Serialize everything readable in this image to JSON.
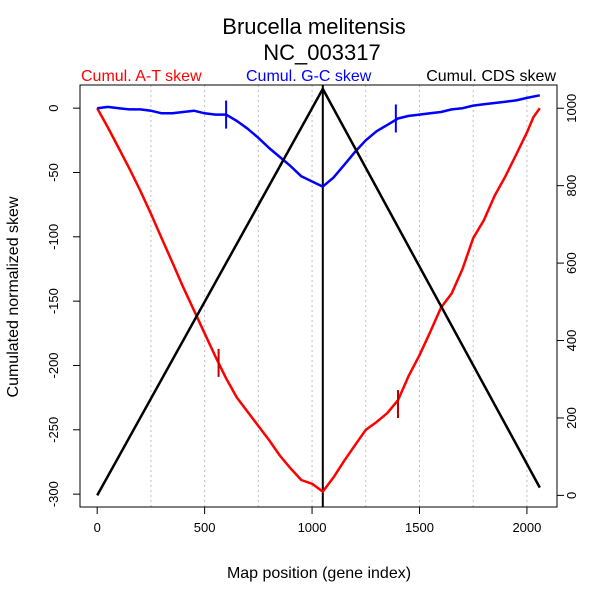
{
  "chart_data": {
    "type": "line",
    "title": "Brucella melitensis",
    "subtitle": "NC_003317",
    "xlabel": "Map position (gene index)",
    "ylabel": "Cumulated normalized skew",
    "xlim": [
      -80,
      2140
    ],
    "ylim": [
      -310,
      18
    ],
    "y2lim": [
      -30,
      1060
    ],
    "x_ticks": [
      0,
      500,
      1000,
      1500,
      2000
    ],
    "y_ticks": [
      0,
      -50,
      -100,
      -150,
      -200,
      -250,
      -300
    ],
    "y2_ticks": [
      0,
      200,
      400,
      600,
      800,
      1000
    ],
    "vertical_gridlines": [
      250,
      500,
      750,
      1000,
      1250,
      1500,
      1750,
      2000
    ],
    "grid_color": "#bebebe",
    "center_line_x": 1050,
    "series": [
      {
        "name": "Cumul. A-T skew",
        "color": "#ff0000",
        "axis": "left",
        "x": [
          0,
          50,
          100,
          150,
          200,
          250,
          300,
          350,
          400,
          450,
          500,
          550,
          600,
          650,
          700,
          750,
          800,
          850,
          900,
          950,
          1000,
          1050,
          1100,
          1150,
          1200,
          1250,
          1300,
          1350,
          1400,
          1450,
          1500,
          1550,
          1600,
          1650,
          1700,
          1750,
          1800,
          1850,
          1900,
          1950,
          2000,
          2030,
          2060
        ],
        "values": [
          0,
          -15,
          -31,
          -47,
          -64,
          -82,
          -101,
          -120,
          -139,
          -157,
          -175,
          -193,
          -210,
          -225,
          -236,
          -247,
          -258,
          -270,
          -280,
          -289,
          -292,
          -298,
          -287,
          -274,
          -262,
          -250,
          -244,
          -237,
          -227,
          -208,
          -192,
          -174,
          -155,
          -144,
          -125,
          -101,
          -87,
          -68,
          -53,
          -36,
          -19,
          -7,
          0
        ]
      },
      {
        "name": "Cumul. G-C skew",
        "color": "#0000ff",
        "axis": "left",
        "x": [
          0,
          50,
          100,
          150,
          200,
          250,
          300,
          350,
          400,
          450,
          500,
          550,
          600,
          650,
          700,
          750,
          800,
          850,
          900,
          950,
          1000,
          1050,
          1100,
          1150,
          1200,
          1250,
          1300,
          1350,
          1400,
          1450,
          1500,
          1550,
          1600,
          1650,
          1700,
          1750,
          1800,
          1850,
          1900,
          1950,
          2000,
          2060
        ],
        "values": [
          0,
          1,
          0,
          -1,
          -1,
          -2,
          -4,
          -4,
          -3,
          -2,
          -4,
          -5,
          -5,
          -10,
          -16,
          -23,
          -31,
          -38,
          -45,
          -53,
          -57,
          -61,
          -54,
          -44,
          -34,
          -25,
          -18,
          -13,
          -8,
          -6,
          -5,
          -4,
          -3,
          -1,
          0,
          2,
          3,
          4,
          5,
          6,
          8,
          10
        ]
      },
      {
        "name": "Cumul. CDS skew",
        "color": "#000000",
        "axis": "right",
        "x": [
          0,
          1050,
          2060
        ],
        "values": [
          0,
          1050,
          20
        ]
      }
    ],
    "marker_ticks": [
      {
        "series": "Cumul. G-C skew",
        "color": "#0000ff",
        "x": 600,
        "y": -5
      },
      {
        "series": "Cumul. G-C skew",
        "color": "#0000ff",
        "x": 1390,
        "y": -8
      },
      {
        "series": "Cumul. A-T skew",
        "color": "#c00000",
        "x": 565,
        "y": -198
      },
      {
        "series": "Cumul. A-T skew",
        "color": "#c00000",
        "x": 1400,
        "y": -230
      }
    ]
  }
}
